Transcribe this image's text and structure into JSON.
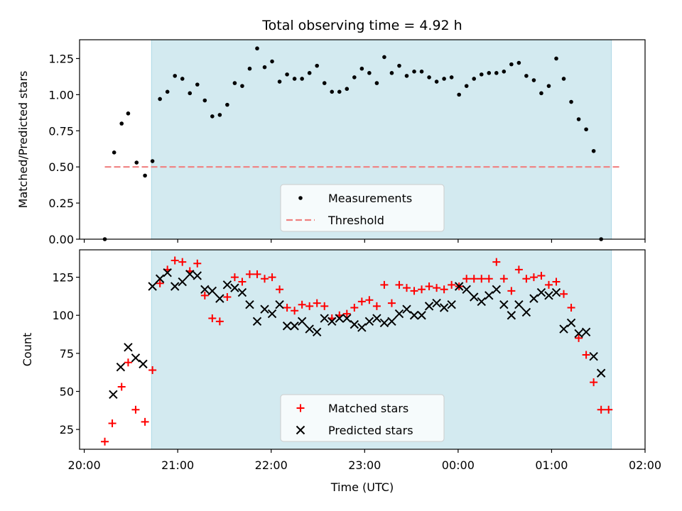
{
  "chart_data": {
    "type": "scatter",
    "title": "Total observing time = 4.92 h",
    "xlabel": "Time (UTC)",
    "x_unit": "hours since 20:00 UTC",
    "x_ticks": [
      {
        "value": 0,
        "label": "20:00"
      },
      {
        "value": 1,
        "label": "21:00"
      },
      {
        "value": 2,
        "label": "22:00"
      },
      {
        "value": 3,
        "label": "23:00"
      },
      {
        "value": 4,
        "label": "00:00"
      },
      {
        "value": 5,
        "label": "01:00"
      },
      {
        "value": 6,
        "label": "02:00"
      }
    ],
    "xlim": [
      -0.05,
      6.0
    ],
    "shaded_region": {
      "x_start": 0.72,
      "x_end": 5.64,
      "color": "#d3eaf0"
    },
    "panels": [
      {
        "ylabel": "Matched/Predicted stars",
        "ylim": [
          0,
          1.38
        ],
        "y_ticks": [
          {
            "value": 0.0,
            "label": "0.00"
          },
          {
            "value": 0.25,
            "label": "0.25"
          },
          {
            "value": 0.5,
            "label": "0.50"
          },
          {
            "value": 0.75,
            "label": "0.75"
          },
          {
            "value": 1.0,
            "label": "1.00"
          },
          {
            "value": 1.25,
            "label": "1.25"
          }
        ],
        "threshold": {
          "value": 0.5,
          "x_start": 0.22,
          "x_end": 5.74,
          "color": "#f08080"
        },
        "legend": {
          "placement": "lower center",
          "entries": [
            "Measurements",
            "Threshold"
          ]
        },
        "series": [
          {
            "name": "Measurements",
            "marker": "dot",
            "color": "#000000",
            "points": [
              [
                0.22,
                0.0
              ],
              [
                0.32,
                0.6
              ],
              [
                0.4,
                0.8
              ],
              [
                0.47,
                0.87
              ],
              [
                0.56,
                0.53
              ],
              [
                0.65,
                0.44
              ],
              [
                0.73,
                0.54
              ],
              [
                0.81,
                0.97
              ],
              [
                0.89,
                1.02
              ],
              [
                0.97,
                1.13
              ],
              [
                1.05,
                1.11
              ],
              [
                1.13,
                1.01
              ],
              [
                1.21,
                1.07
              ],
              [
                1.29,
                0.96
              ],
              [
                1.37,
                0.85
              ],
              [
                1.45,
                0.86
              ],
              [
                1.53,
                0.93
              ],
              [
                1.61,
                1.08
              ],
              [
                1.69,
                1.06
              ],
              [
                1.77,
                1.18
              ],
              [
                1.85,
                1.32
              ],
              [
                1.93,
                1.19
              ],
              [
                2.01,
                1.23
              ],
              [
                2.09,
                1.09
              ],
              [
                2.17,
                1.14
              ],
              [
                2.25,
                1.11
              ],
              [
                2.33,
                1.11
              ],
              [
                2.41,
                1.15
              ],
              [
                2.49,
                1.2
              ],
              [
                2.57,
                1.08
              ],
              [
                2.65,
                1.02
              ],
              [
                2.73,
                1.02
              ],
              [
                2.81,
                1.04
              ],
              [
                2.89,
                1.12
              ],
              [
                2.97,
                1.18
              ],
              [
                3.05,
                1.15
              ],
              [
                3.13,
                1.08
              ],
              [
                3.21,
                1.26
              ],
              [
                3.29,
                1.15
              ],
              [
                3.37,
                1.2
              ],
              [
                3.45,
                1.13
              ],
              [
                3.53,
                1.16
              ],
              [
                3.61,
                1.16
              ],
              [
                3.69,
                1.12
              ],
              [
                3.77,
                1.09
              ],
              [
                3.85,
                1.11
              ],
              [
                3.93,
                1.12
              ],
              [
                4.01,
                1.0
              ],
              [
                4.09,
                1.06
              ],
              [
                4.17,
                1.11
              ],
              [
                4.25,
                1.14
              ],
              [
                4.33,
                1.15
              ],
              [
                4.41,
                1.15
              ],
              [
                4.49,
                1.16
              ],
              [
                4.57,
                1.21
              ],
              [
                4.65,
                1.22
              ],
              [
                4.73,
                1.13
              ],
              [
                4.81,
                1.1
              ],
              [
                4.89,
                1.01
              ],
              [
                4.97,
                1.06
              ],
              [
                5.05,
                1.25
              ],
              [
                5.13,
                1.11
              ],
              [
                5.21,
                0.95
              ],
              [
                5.29,
                0.83
              ],
              [
                5.37,
                0.76
              ],
              [
                5.45,
                0.61
              ],
              [
                5.53,
                0.0
              ]
            ]
          }
        ]
      },
      {
        "ylabel": "Count",
        "ylim": [
          12,
          143
        ],
        "y_ticks": [
          {
            "value": 25,
            "label": "25"
          },
          {
            "value": 50,
            "label": "50"
          },
          {
            "value": 75,
            "label": "75"
          },
          {
            "value": 100,
            "label": "100"
          },
          {
            "value": 125,
            "label": "125"
          }
        ],
        "legend": {
          "placement": "lower center",
          "entries": [
            "Matched stars",
            "Predicted stars"
          ]
        },
        "series": [
          {
            "name": "Matched stars",
            "marker": "plus",
            "color": "#ff0000",
            "points": [
              [
                0.22,
                17
              ],
              [
                0.3,
                29
              ],
              [
                0.4,
                53
              ],
              [
                0.47,
                69
              ],
              [
                0.55,
                38
              ],
              [
                0.65,
                30
              ],
              [
                0.73,
                64
              ],
              [
                0.81,
                121
              ],
              [
                0.89,
                130
              ],
              [
                0.97,
                136
              ],
              [
                1.05,
                135
              ],
              [
                1.13,
                129
              ],
              [
                1.21,
                134
              ],
              [
                1.29,
                113
              ],
              [
                1.37,
                98
              ],
              [
                1.45,
                96
              ],
              [
                1.53,
                112
              ],
              [
                1.61,
                125
              ],
              [
                1.69,
                122
              ],
              [
                1.77,
                127
              ],
              [
                1.85,
                127
              ],
              [
                1.93,
                124
              ],
              [
                2.01,
                125
              ],
              [
                2.09,
                117
              ],
              [
                2.17,
                105
              ],
              [
                2.25,
                103
              ],
              [
                2.33,
                107
              ],
              [
                2.41,
                106
              ],
              [
                2.49,
                108
              ],
              [
                2.57,
                106
              ],
              [
                2.65,
                98
              ],
              [
                2.73,
                100
              ],
              [
                2.81,
                101
              ],
              [
                2.89,
                105
              ],
              [
                2.97,
                109
              ],
              [
                3.05,
                110
              ],
              [
                3.13,
                106
              ],
              [
                3.21,
                120
              ],
              [
                3.29,
                108
              ],
              [
                3.37,
                120
              ],
              [
                3.45,
                118
              ],
              [
                3.53,
                116
              ],
              [
                3.61,
                117
              ],
              [
                3.69,
                119
              ],
              [
                3.77,
                118
              ],
              [
                3.85,
                117
              ],
              [
                3.93,
                120
              ],
              [
                4.01,
                119
              ],
              [
                4.09,
                124
              ],
              [
                4.17,
                124
              ],
              [
                4.25,
                124
              ],
              [
                4.33,
                124
              ],
              [
                4.41,
                135
              ],
              [
                4.49,
                124
              ],
              [
                4.57,
                116
              ],
              [
                4.65,
                130
              ],
              [
                4.73,
                124
              ],
              [
                4.81,
                125
              ],
              [
                4.89,
                126
              ],
              [
                4.97,
                120
              ],
              [
                5.05,
                122
              ],
              [
                5.13,
                114
              ],
              [
                5.21,
                105
              ],
              [
                5.29,
                85
              ],
              [
                5.37,
                74
              ],
              [
                5.45,
                56
              ],
              [
                5.53,
                38
              ],
              [
                5.61,
                38
              ]
            ]
          },
          {
            "name": "Predicted stars",
            "marker": "x",
            "color": "#000000",
            "points": [
              [
                0.31,
                48
              ],
              [
                0.39,
                66
              ],
              [
                0.47,
                79
              ],
              [
                0.55,
                72
              ],
              [
                0.63,
                68
              ],
              [
                0.73,
                119
              ],
              [
                0.81,
                124
              ],
              [
                0.89,
                128
              ],
              [
                0.97,
                119
              ],
              [
                1.05,
                122
              ],
              [
                1.13,
                127
              ],
              [
                1.21,
                126
              ],
              [
                1.29,
                117
              ],
              [
                1.37,
                116
              ],
              [
                1.45,
                111
              ],
              [
                1.53,
                120
              ],
              [
                1.61,
                118
              ],
              [
                1.69,
                115
              ],
              [
                1.77,
                107
              ],
              [
                1.85,
                96
              ],
              [
                1.93,
                104
              ],
              [
                2.01,
                101
              ],
              [
                2.09,
                107
              ],
              [
                2.17,
                93
              ],
              [
                2.25,
                93
              ],
              [
                2.33,
                96
              ],
              [
                2.41,
                91
              ],
              [
                2.49,
                89
              ],
              [
                2.57,
                98
              ],
              [
                2.65,
                96
              ],
              [
                2.73,
                98
              ],
              [
                2.81,
                98
              ],
              [
                2.89,
                94
              ],
              [
                2.97,
                92
              ],
              [
                3.05,
                96
              ],
              [
                3.13,
                98
              ],
              [
                3.21,
                95
              ],
              [
                3.29,
                96
              ],
              [
                3.37,
                101
              ],
              [
                3.45,
                104
              ],
              [
                3.53,
                100
              ],
              [
                3.61,
                100
              ],
              [
                3.69,
                106
              ],
              [
                3.77,
                108
              ],
              [
                3.85,
                105
              ],
              [
                3.93,
                107
              ],
              [
                4.01,
                119
              ],
              [
                4.09,
                117
              ],
              [
                4.17,
                112
              ],
              [
                4.25,
                109
              ],
              [
                4.33,
                113
              ],
              [
                4.41,
                117
              ],
              [
                4.49,
                107
              ],
              [
                4.57,
                100
              ],
              [
                4.65,
                107
              ],
              [
                4.73,
                102
              ],
              [
                4.81,
                111
              ],
              [
                4.89,
                115
              ],
              [
                4.97,
                113
              ],
              [
                5.05,
                115
              ],
              [
                5.13,
                91
              ],
              [
                5.21,
                95
              ],
              [
                5.29,
                88
              ],
              [
                5.37,
                89
              ],
              [
                5.45,
                73
              ],
              [
                5.53,
                62
              ]
            ]
          }
        ]
      }
    ]
  }
}
